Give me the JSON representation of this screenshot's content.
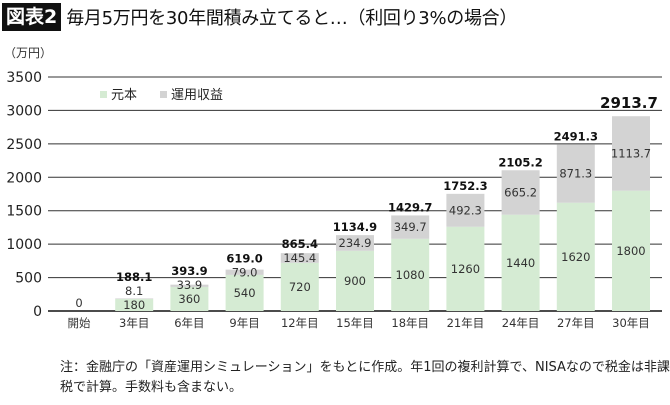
{
  "title": {
    "badge": "図表2",
    "text": "毎月5万円を30年間積み立てると…（利回り3%の場合）"
  },
  "note": "注：金融庁の「資産運用シミュレーション」をもとに作成。年1回の複利計算で、NISAなので税金は非課税で計算。手数料も含まない。",
  "chart_data": {
    "type": "bar",
    "stacked": true,
    "ylabel": "（万円）",
    "ylim": [
      0,
      3500
    ],
    "yticks": [
      0,
      500,
      1000,
      1500,
      2000,
      2500,
      3000,
      3500
    ],
    "grid": true,
    "legend_position": "top-left",
    "categories": [
      "開始",
      "3年目",
      "6年目",
      "9年目",
      "12年目",
      "15年目",
      "18年目",
      "21年目",
      "24年目",
      "27年目",
      "30年目"
    ],
    "series": [
      {
        "name": "元本",
        "color": "#d5ebd3",
        "values": [
          0,
          180,
          360,
          540,
          720,
          900,
          1080,
          1260,
          1440,
          1620,
          1800
        ]
      },
      {
        "name": "運用収益",
        "color": "#d3d3d3",
        "values": [
          0,
          8.1,
          33.9,
          79.0,
          145.4,
          234.9,
          349.7,
          492.3,
          665.2,
          871.3,
          1113.7
        ]
      }
    ],
    "totals": [
      "0",
      "188.1",
      "393.9",
      "619.0",
      "865.4",
      "1134.9",
      "1429.7",
      "1752.3",
      "2105.2",
      "2491.3",
      "2913.7"
    ],
    "principal_labels": [
      "",
      "180",
      "360",
      "540",
      "720",
      "900",
      "1080",
      "1260",
      "1440",
      "1620",
      "1800"
    ],
    "gain_labels": [
      "",
      "8.1",
      "33.9",
      "79.0",
      "145.4",
      "234.9",
      "349.7",
      "492.3",
      "665.2",
      "871.3",
      "1113.7"
    ]
  }
}
